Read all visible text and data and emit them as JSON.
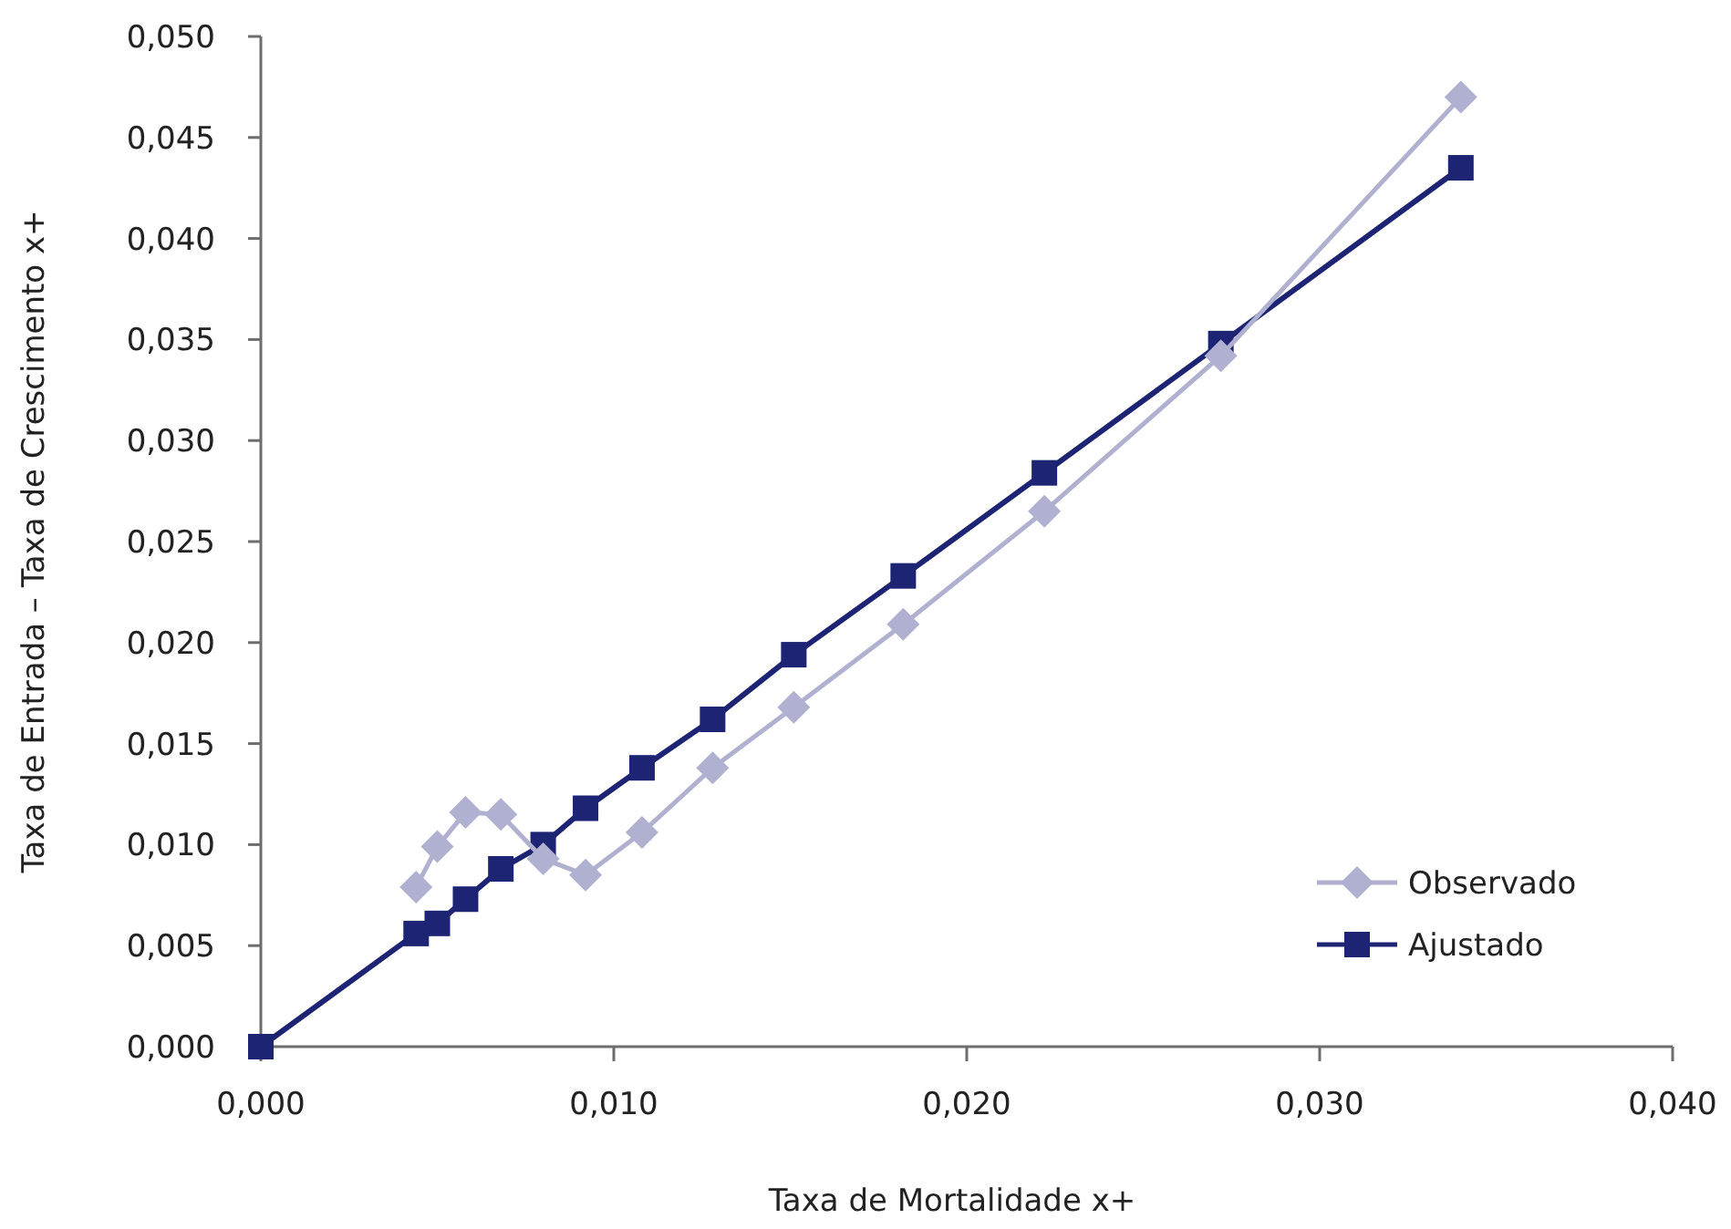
{
  "chart_data": {
    "type": "line",
    "xlabel": "Taxa de Mortalidade x+",
    "ylabel": "Taxa de Entrada – Taxa de Crescimento x+",
    "xlim": [
      0,
      0.04
    ],
    "xticks": [
      {
        "value": 0,
        "label": "0,000"
      },
      {
        "value": 0.01,
        "label": "0,010"
      },
      {
        "value": 0.02,
        "label": "0,020"
      },
      {
        "value": 0.03,
        "label": "0,030"
      },
      {
        "value": 0.04,
        "label": "0,040"
      }
    ],
    "ylim": [
      0,
      0.05
    ],
    "yticks": [
      {
        "value": 0,
        "label": "0,000"
      },
      {
        "value": 0.005,
        "label": "0,005"
      },
      {
        "value": 0.01,
        "label": "0,010"
      },
      {
        "value": 0.015,
        "label": "0,015"
      },
      {
        "value": 0.02,
        "label": "0,020"
      },
      {
        "value": 0.025,
        "label": "0,025"
      },
      {
        "value": 0.03,
        "label": "0,030"
      },
      {
        "value": 0.035,
        "label": "0,035"
      },
      {
        "value": 0.04,
        "label": "0,040"
      },
      {
        "value": 0.045,
        "label": "0,045"
      },
      {
        "value": 0.05,
        "label": "0,050"
      }
    ],
    "grid": false,
    "legend": "bottom right",
    "series": [
      {
        "name": "Observado",
        "color": "#b0b0d0",
        "marker": "diamond",
        "x": [
          0.0044,
          0.005,
          0.0058,
          0.0068,
          0.008,
          0.0092,
          0.0108,
          0.0128,
          0.0151,
          0.0182,
          0.0222,
          0.0272,
          0.034
        ],
        "values": [
          0.0079,
          0.0099,
          0.0116,
          0.0115,
          0.0093,
          0.0085,
          0.0106,
          0.0138,
          0.0168,
          0.0209,
          0.0265,
          0.0342,
          0.047
        ]
      },
      {
        "name": "Ajustado",
        "color": "#1c2473",
        "marker": "square",
        "x": [
          0,
          0.0044,
          0.005,
          0.0058,
          0.0068,
          0.008,
          0.0092,
          0.0108,
          0.0128,
          0.0151,
          0.0182,
          0.0222,
          0.0272,
          0.034
        ],
        "values": [
          0,
          0.0056,
          0.0061,
          0.0073,
          0.0088,
          0.01,
          0.0118,
          0.0138,
          0.0162,
          0.0194,
          0.0233,
          0.0284,
          0.0348,
          0.0435
        ]
      }
    ]
  }
}
